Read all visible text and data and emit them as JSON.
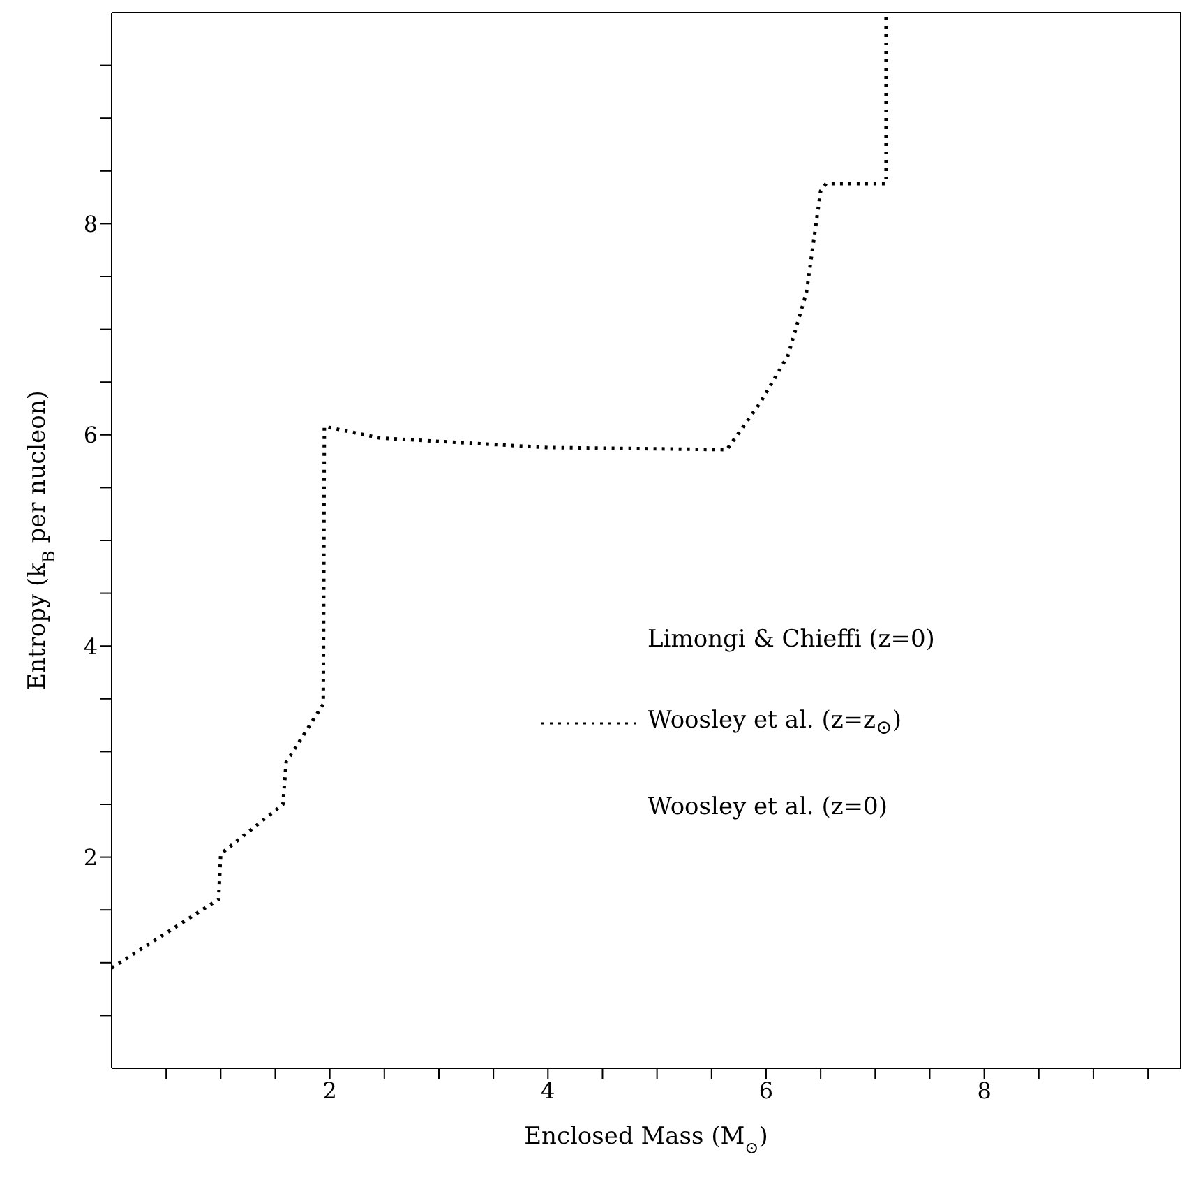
{
  "chart_data": {
    "type": "line",
    "xlabel": "Enclosed Mass (M$_{⊙}$)",
    "ylabel": "Entropy (k$_{B}$ per nucleon)",
    "x": [
      0,
      0.98,
      1.0,
      1.57,
      1.6,
      1.94,
      1.95,
      2.46,
      2.97,
      4,
      5.64,
      5.95,
      6.2,
      6.37,
      6.5,
      6.55,
      7.1,
      7.1
    ],
    "series": [
      {
        "name": "Limongi & Chieffi (z=0)",
        "values": [
          null,
          null,
          null,
          null,
          null,
          null,
          null,
          null,
          null,
          null,
          null,
          null,
          null,
          null,
          null,
          null,
          null,
          null
        ]
      },
      {
        "name": "Woosley et al. (z=z$_{⊙}$)",
        "color": "#000000",
        "line_style": "dotted",
        "values": [
          0.95,
          1.6,
          2.03,
          2.5,
          2.9,
          3.45,
          6.08,
          5.97,
          5.94,
          5.88,
          5.86,
          6.31,
          6.75,
          7.35,
          8.31,
          8.38,
          8.38,
          10
        ]
      },
      {
        "name": "Woosley et al. (z=0)",
        "values": [
          null,
          null,
          null,
          null,
          null,
          null,
          null,
          null,
          null,
          null,
          null,
          null,
          null,
          null,
          null,
          null,
          null,
          null
        ]
      }
    ],
    "xlim": [
      0,
      9.8
    ],
    "ylim": [
      0,
      10
    ],
    "xticks": [
      {
        "value": 0.5,
        "label": null
      },
      {
        "value": 1,
        "label": null
      },
      {
        "value": 1.5,
        "label": null
      },
      2,
      {
        "value": 2.5,
        "label": null
      },
      {
        "value": 3,
        "label": null
      },
      {
        "value": 3.5,
        "label": null
      },
      4,
      {
        "value": 4.5,
        "label": null
      },
      {
        "value": 5,
        "label": null
      },
      {
        "value": 5.5,
        "label": null
      },
      6,
      {
        "value": 6.5,
        "label": null
      },
      {
        "value": 7,
        "label": null
      },
      {
        "value": 7.5,
        "label": null
      },
      8,
      {
        "value": 8.5,
        "label": null
      },
      {
        "value": 9,
        "label": null
      },
      {
        "value": 9.5,
        "label": null
      }
    ],
    "yticks": [
      {
        "value": 0.5,
        "label": null
      },
      {
        "value": 1,
        "label": null
      },
      {
        "value": 1.5,
        "label": null
      },
      2,
      {
        "value": 2.5,
        "label": null
      },
      {
        "value": 3,
        "label": null
      },
      {
        "value": 3.5,
        "label": null
      },
      4,
      {
        "value": 4.5,
        "label": null
      },
      {
        "value": 5,
        "label": null
      },
      {
        "value": 5.5,
        "label": null
      },
      6,
      {
        "value": 6.5,
        "label": null
      },
      {
        "value": 7,
        "label": null
      },
      {
        "value": 7.5,
        "label": null
      },
      8,
      {
        "value": 8.5,
        "label": null
      },
      {
        "value": 9,
        "label": null
      },
      {
        "value": 9.5,
        "label": null
      }
    ],
    "grid": false,
    "legend": "right",
    "marker": "none"
  }
}
